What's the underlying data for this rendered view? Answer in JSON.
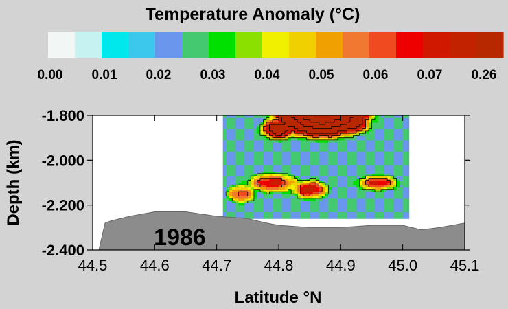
{
  "chart_data": {
    "type": "heatmap",
    "title": "Temperature Anomaly (°C)",
    "xlabel": "Latitude °N",
    "ylabel": "Depth (km)",
    "annotation": "1986",
    "xlim": [
      44.5,
      45.1
    ],
    "ylim": [
      -2.4,
      -1.8
    ],
    "x_ticks": [
      "44.5",
      "44.6",
      "44.7",
      "44.8",
      "44.9",
      "45.0",
      "45.1"
    ],
    "y_ticks": [
      "-1.800",
      "-2.000",
      "-2.200",
      "-2.400"
    ],
    "colorbar": {
      "tick_labels": [
        "0.00",
        "0.01",
        "0.02",
        "0.03",
        "0.04",
        "0.05",
        "0.06",
        "0.07",
        "0.26"
      ],
      "colors": [
        "#f2f6f5",
        "#c6f2f2",
        "#00e8ec",
        "#3cc8ec",
        "#6a96ee",
        "#44c870",
        "#00e000",
        "#8ce000",
        "#f0f000",
        "#f0d000",
        "#f0a000",
        "#f07830",
        "#f04a20",
        "#ee0000",
        "#d01800",
        "#c22200",
        "#b82800"
      ]
    },
    "data_extent": {
      "lat": [
        44.71,
        45.01
      ],
      "depth": [
        -2.26,
        -1.8
      ]
    },
    "seafloor": {
      "lat": [
        44.51,
        44.52,
        44.53,
        44.56,
        44.6,
        44.65,
        44.7,
        44.75,
        44.78,
        44.8,
        44.85,
        44.9,
        44.95,
        45.0,
        45.03,
        45.06,
        45.1
      ],
      "depth": [
        -2.4,
        -2.28,
        -2.27,
        -2.25,
        -2.23,
        -2.23,
        -2.25,
        -2.26,
        -2.28,
        -2.29,
        -2.3,
        -2.3,
        -2.29,
        -2.29,
        -2.31,
        -2.3,
        -2.28
      ]
    },
    "anomaly_blobs": [
      {
        "lat": 44.87,
        "depth": -1.78,
        "value": 0.26,
        "sx": 0.06,
        "sy": 0.09
      },
      {
        "lat": 44.8,
        "depth": -1.86,
        "value": 0.09,
        "sx": 0.03,
        "sy": 0.05
      },
      {
        "lat": 44.92,
        "depth": -1.84,
        "value": 0.08,
        "sx": 0.03,
        "sy": 0.05
      },
      {
        "lat": 44.79,
        "depth": -2.1,
        "value": 0.062,
        "sx": 0.05,
        "sy": 0.05
      },
      {
        "lat": 44.85,
        "depth": -2.13,
        "value": 0.065,
        "sx": 0.035,
        "sy": 0.05
      },
      {
        "lat": 44.96,
        "depth": -2.1,
        "value": 0.062,
        "sx": 0.04,
        "sy": 0.04
      },
      {
        "lat": 44.74,
        "depth": -2.15,
        "value": 0.055,
        "sx": 0.03,
        "sy": 0.05
      }
    ],
    "background_value": 0.022
  }
}
